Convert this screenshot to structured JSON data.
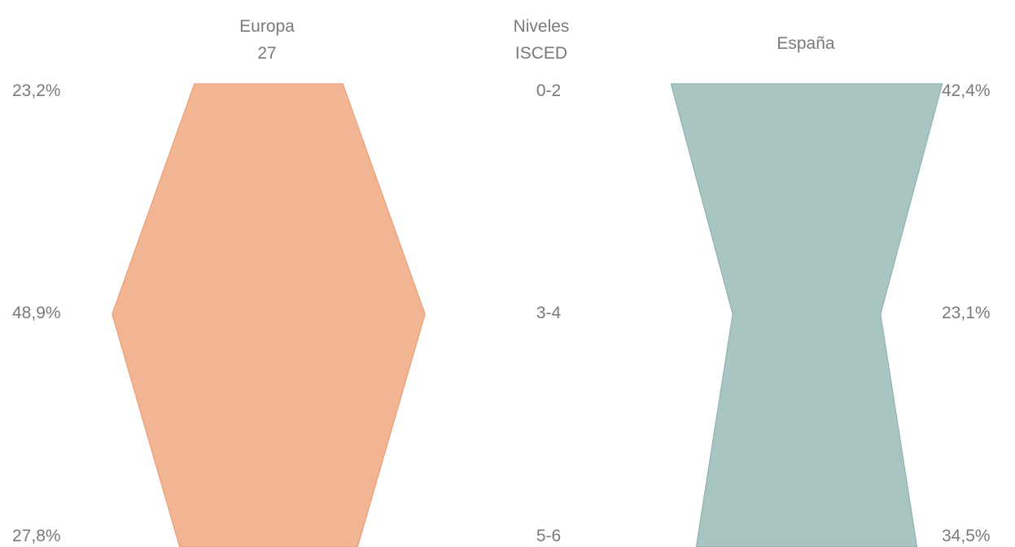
{
  "chart_data": {
    "type": "area",
    "levels_header": [
      "Niveles",
      "ISCED"
    ],
    "categories": [
      "0-2",
      "3-4",
      "5-6"
    ],
    "series": [
      {
        "name_lines": [
          "Europa",
          "27"
        ],
        "values": [
          23.2,
          48.9,
          27.8
        ],
        "labels": [
          "23,2%",
          "48,9%",
          "27,8%"
        ],
        "color": "#f2b593",
        "stroke": "#ea9f78"
      },
      {
        "name_lines": [
          "España"
        ],
        "values": [
          42.4,
          23.1,
          34.5
        ],
        "labels": [
          "42,4%",
          "23,1%",
          "34,5%"
        ],
        "color": "#a9c5c2",
        "stroke": "#8fb2ae"
      }
    ]
  }
}
